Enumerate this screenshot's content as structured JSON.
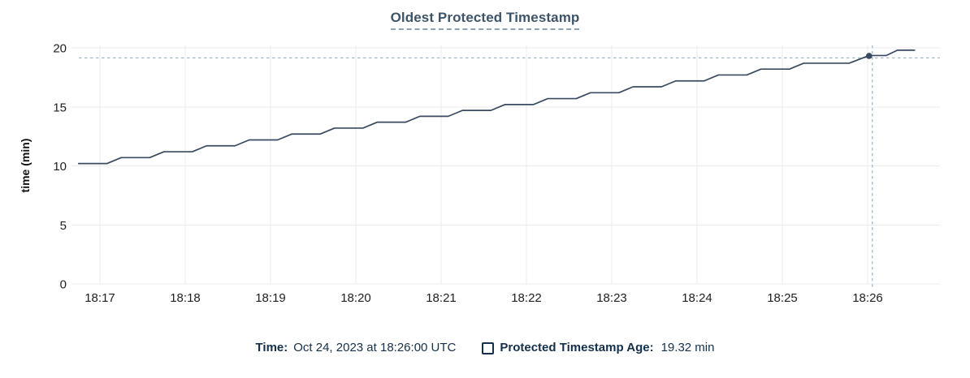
{
  "title": {
    "text": "Oldest Protected Timestamp"
  },
  "y_axis_label": "time (min)",
  "legend": {
    "time_label": "Time:",
    "time_value": "Oct 24, 2023 at 18:26:00 UTC",
    "series_toggle_icon": "empty-checkbox-icon",
    "series_label": "Protected Timestamp Age:",
    "series_value": "19.32 min"
  },
  "colors": {
    "title_text": "#3e5469",
    "title_underline": "#8ca2b5",
    "legend_text": "#14304b",
    "line": "#394a61",
    "dot": "#394a61",
    "crosshair": "#a7b9c2",
    "gridline": "#ebebeb",
    "axis_text": "#212121"
  },
  "chart_data": {
    "type": "line",
    "title": "Oldest Protected Timestamp",
    "xlabel": "",
    "ylabel": "time (min)",
    "grid": true,
    "legend_position": "bottom",
    "y_ticks": [
      0,
      5,
      10,
      15,
      20
    ],
    "ylim": [
      0,
      20.2
    ],
    "x_tick_labels": [
      "18:17",
      "18:18",
      "18:19",
      "18:20",
      "18:21",
      "18:22",
      "18:23",
      "18:24",
      "18:25",
      "18:26"
    ],
    "x_tick_seconds": [
      0,
      60,
      120,
      180,
      240,
      300,
      360,
      420,
      480,
      540
    ],
    "series": [
      {
        "name": "Protected Timestamp Age",
        "unit": "min",
        "points": [
          [
            -15,
            10.2
          ],
          [
            5,
            10.2
          ],
          [
            15,
            10.7
          ],
          [
            35,
            10.7
          ],
          [
            45,
            11.2
          ],
          [
            65,
            11.2
          ],
          [
            75,
            11.7
          ],
          [
            95,
            11.7
          ],
          [
            105,
            12.2
          ],
          [
            125,
            12.2
          ],
          [
            135,
            12.7
          ],
          [
            155,
            12.7
          ],
          [
            165,
            13.2
          ],
          [
            185,
            13.2
          ],
          [
            195,
            13.7
          ],
          [
            215,
            13.7
          ],
          [
            225,
            14.2
          ],
          [
            245,
            14.2
          ],
          [
            255,
            14.7
          ],
          [
            275,
            14.7
          ],
          [
            285,
            15.2
          ],
          [
            305,
            15.2
          ],
          [
            315,
            15.7
          ],
          [
            335,
            15.7
          ],
          [
            345,
            16.2
          ],
          [
            365,
            16.2
          ],
          [
            375,
            16.7
          ],
          [
            395,
            16.7
          ],
          [
            405,
            17.2
          ],
          [
            425,
            17.2
          ],
          [
            435,
            17.7
          ],
          [
            455,
            17.7
          ],
          [
            465,
            18.2
          ],
          [
            485,
            18.2
          ],
          [
            495,
            18.7
          ],
          [
            527,
            18.7
          ],
          [
            541,
            19.35
          ],
          [
            553,
            19.35
          ],
          [
            561,
            19.8
          ],
          [
            573,
            19.8
          ]
        ]
      }
    ],
    "crosshair": {
      "t_seconds": 541,
      "value": 19.32
    }
  }
}
